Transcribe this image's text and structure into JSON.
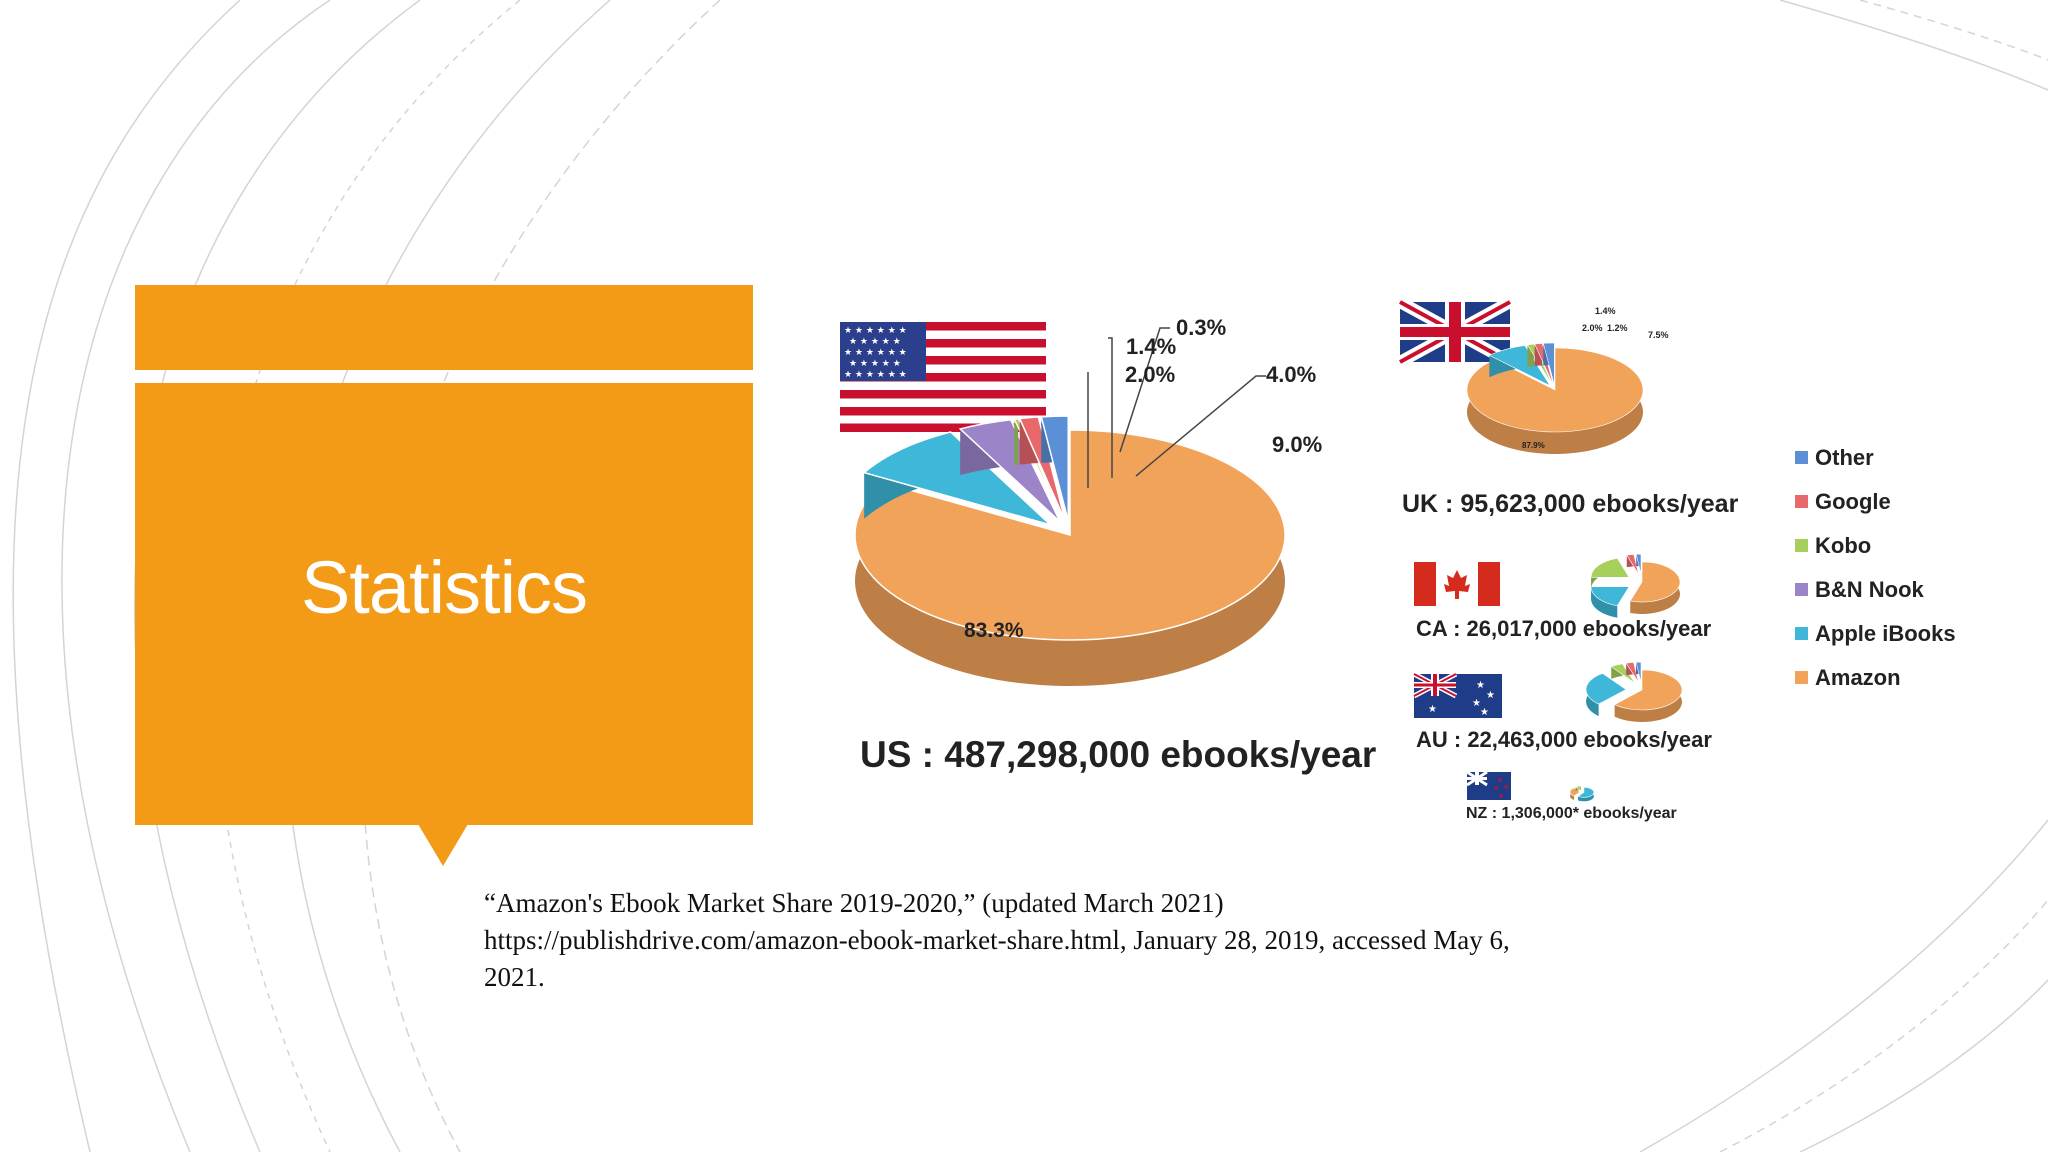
{
  "slide": {
    "title": "Statistics",
    "accent_color": "#F39A16",
    "citation": {
      "line1": "“Amazon's Ebook Market Share 2019-2020,” (updated March 2021)",
      "line2": "https://publishdrive.com/amazon-ebook-market-share.html, January 28, 2019, accessed May 6,",
      "line3": "2021."
    }
  },
  "chart_data": [
    {
      "type": "pie",
      "country": "US",
      "flag": "us-flag",
      "caption": "US : 487,298,000 ebooks/year",
      "slices": [
        {
          "name": "Amazon",
          "value": 83.3,
          "label": "83.3%"
        },
        {
          "name": "Apple iBooks",
          "value": 9.0,
          "label": "9.0%"
        },
        {
          "name": "B&N Nook",
          "value": 4.0,
          "label": "4.0%"
        },
        {
          "name": "Kobo",
          "value": 0.3,
          "label": "0.3%"
        },
        {
          "name": "Google",
          "value": 1.4,
          "label": "1.4%"
        },
        {
          "name": "Other",
          "value": 2.0,
          "label": "2.0%"
        }
      ]
    },
    {
      "type": "pie",
      "country": "UK",
      "flag": "uk-flag",
      "caption": "UK : 95,623,000 ebooks/year",
      "slices": [
        {
          "name": "Amazon",
          "value": 87.9,
          "label": "87.9%"
        },
        {
          "name": "Apple iBooks",
          "value": 7.5,
          "label": "7.5%"
        },
        {
          "name": "Kobo",
          "value": 1.2,
          "label": "1.2%"
        },
        {
          "name": "Google",
          "value": 1.4,
          "label": "1.4%"
        },
        {
          "name": "Other",
          "value": 2.0,
          "label": "2.0%"
        }
      ]
    },
    {
      "type": "pie",
      "country": "CA",
      "flag": "canada-flag",
      "caption": "CA : 26,017,000 ebooks/year",
      "slices": [
        {
          "name": "Amazon",
          "value": 55
        },
        {
          "name": "Apple iBooks",
          "value": 20
        },
        {
          "name": "Kobo",
          "value": 20
        },
        {
          "name": "Google",
          "value": 3
        },
        {
          "name": "Other",
          "value": 2
        }
      ]
    },
    {
      "type": "pie",
      "country": "AU",
      "flag": "australia-flag",
      "caption": "AU : 22,463,000 ebooks/year",
      "slices": [
        {
          "name": "Amazon",
          "value": 62
        },
        {
          "name": "Apple iBooks",
          "value": 28
        },
        {
          "name": "Kobo",
          "value": 5
        },
        {
          "name": "Google",
          "value": 3
        },
        {
          "name": "Other",
          "value": 2
        }
      ]
    },
    {
      "type": "pie",
      "country": "NZ",
      "flag": "new-zealand-flag",
      "caption": "NZ : 1,306,000* ebooks/year",
      "slices": [
        {
          "name": "Apple iBooks",
          "value": 60
        },
        {
          "name": "Amazon",
          "value": 30
        },
        {
          "name": "Kobo",
          "value": 10
        }
      ]
    }
  ],
  "legend": {
    "placement": "right",
    "items": [
      {
        "label": "Other",
        "color": "#5B8FD6"
      },
      {
        "label": "Google",
        "color": "#E8686C"
      },
      {
        "label": "Kobo",
        "color": "#A6CF5C"
      },
      {
        "label": "B&N Nook",
        "color": "#9C84C9"
      },
      {
        "label": "Apple iBooks",
        "color": "#3EB7D9"
      },
      {
        "label": "Amazon",
        "color": "#F2A35A"
      }
    ]
  }
}
